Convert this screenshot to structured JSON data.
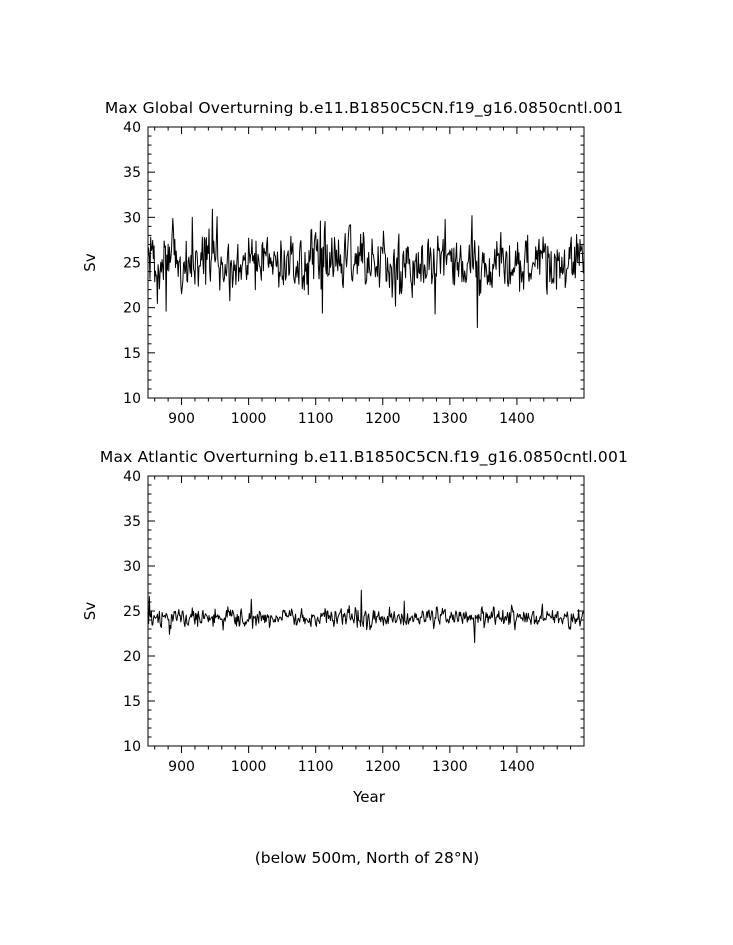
{
  "chart_data": [
    {
      "type": "line",
      "title": "Max Global Overturning b.e11.B1850C5CN.f19_g16.0850cntl.001",
      "xlabel": "",
      "ylabel": "Sv",
      "xlim": [
        850,
        1500
      ],
      "ylim": [
        10,
        40
      ],
      "xticks": [
        "900",
        "1000",
        "1100",
        "1200",
        "1300",
        "1400"
      ],
      "yticks": [
        "10",
        "15",
        "20",
        "25",
        "30",
        "35",
        "40"
      ],
      "grid": false,
      "series": [
        {
          "x_start": 850,
          "x_step": 1,
          "mean": 25.0,
          "amplitude": 2.3,
          "min": 17.8,
          "max": 30.9,
          "extremes": [
            {
              "x": 946,
              "y": 30.9
            },
            {
              "x": 916,
              "y": 30.0
            },
            {
              "x": 1107,
              "y": 29.6
            },
            {
              "x": 1110,
              "y": 19.4
            },
            {
              "x": 877,
              "y": 19.6
            },
            {
              "x": 1341,
              "y": 17.8
            },
            {
              "x": 1278,
              "y": 19.3
            },
            {
              "x": 1489,
              "y": 28.1
            }
          ]
        }
      ]
    },
    {
      "type": "line",
      "title": "Max Atlantic Overturning b.e11.B1850C5CN.f19_g16.0850cntl.001",
      "xlabel": "Year",
      "ylabel": "Sv",
      "xlim": [
        850,
        1500
      ],
      "ylim": [
        10,
        40
      ],
      "xticks": [
        "900",
        "1000",
        "1100",
        "1200",
        "1300",
        "1400"
      ],
      "yticks": [
        "10",
        "15",
        "20",
        "25",
        "30",
        "35",
        "40"
      ],
      "grid": false,
      "series": [
        {
          "x_start": 850,
          "x_step": 1,
          "mean": 24.3,
          "amplitude": 0.7,
          "min": 21.5,
          "max": 27.3,
          "extremes": [
            {
              "x": 852,
              "y": 26.6
            },
            {
              "x": 1168,
              "y": 27.3
            },
            {
              "x": 1337,
              "y": 21.5
            },
            {
              "x": 882,
              "y": 22.4
            },
            {
              "x": 1232,
              "y": 26.1
            },
            {
              "x": 1004,
              "y": 26.3
            }
          ]
        }
      ]
    }
  ],
  "footnote": "(below 500m, North of 28°N)"
}
